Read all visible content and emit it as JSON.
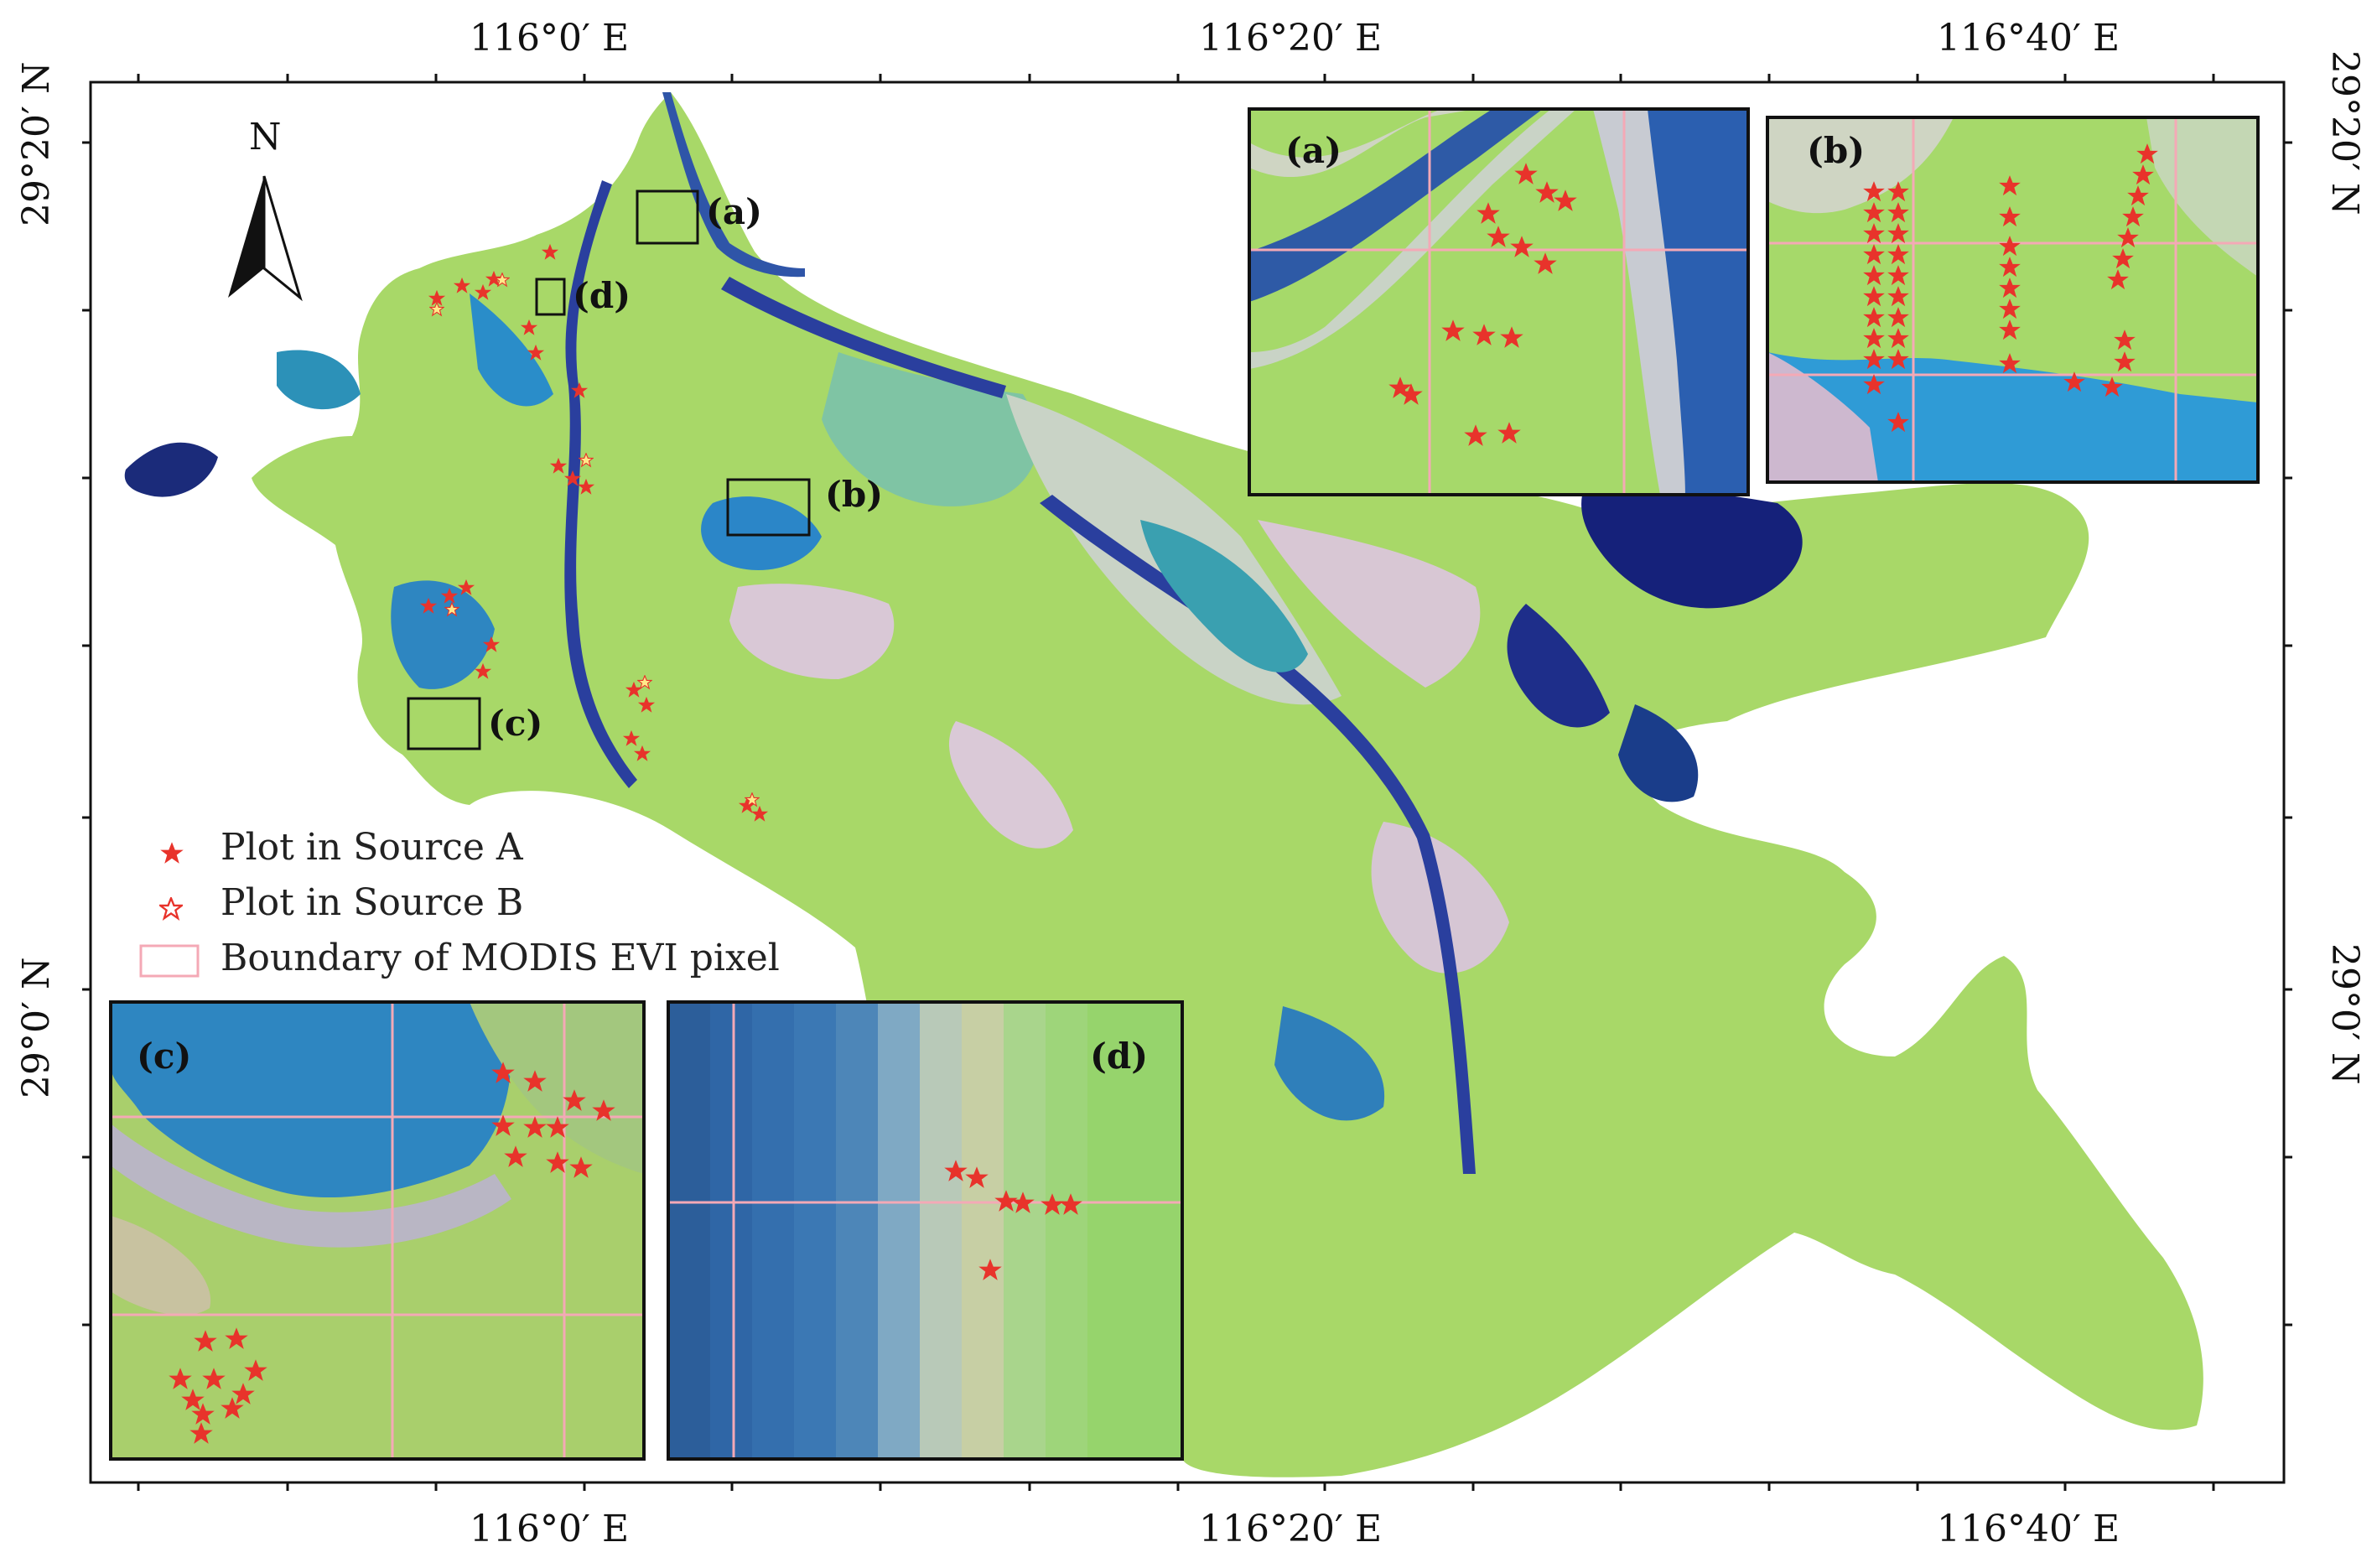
{
  "map": {
    "top_ticks": [
      "116°0′ E",
      "116°20′ E",
      "116°40′ E"
    ],
    "bottom_ticks": [
      "116°0′ E",
      "116°20′ E",
      "116°40′ E"
    ],
    "left_ticks": [
      "29°20′ N",
      "29°0′ N"
    ],
    "right_ticks": [
      "29°20′ N",
      "29°0′ N"
    ],
    "north_label": "N",
    "locator_labels": [
      "(a)",
      "(b)",
      "(c)",
      "(d)"
    ],
    "inset_labels": [
      "(a)",
      "(b)",
      "(c)",
      "(d)"
    ]
  },
  "legend": {
    "items": [
      {
        "label": "Plot in Source A",
        "symbol": "filled-star-icon"
      },
      {
        "label": "Plot in Source B",
        "symbol": "hollow-star-icon"
      },
      {
        "label": "Boundary of MODIS EVI pixel",
        "symbol": "pink-square-icon"
      }
    ]
  },
  "colors": {
    "vegetation": "#a6d96a",
    "water_deep": "#1b2b7a",
    "water_blue": "#2e86c1",
    "mudflat": "#d9c8d6",
    "plot_marker": "#e8332b",
    "modis_grid": "#f4a9b6"
  }
}
